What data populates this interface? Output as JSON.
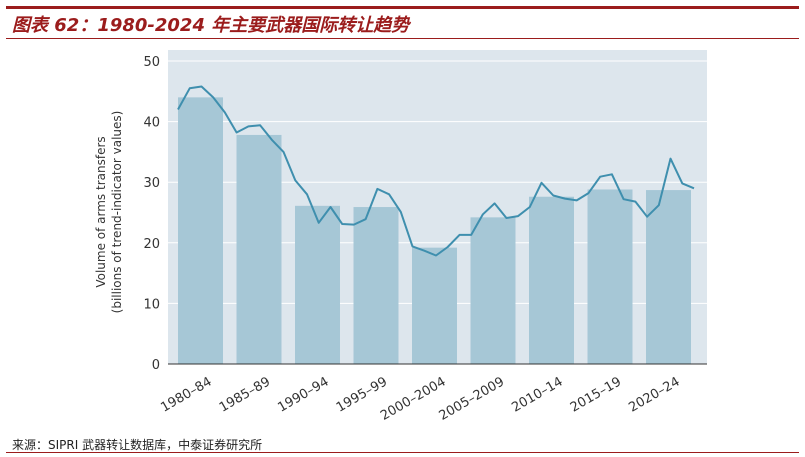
{
  "header": {
    "figure_title": "图表 62：1980-2024 年主要武器国际转让趋势"
  },
  "footer": {
    "source": "来源：SIPRI 武器转让数据库，中泰证券研究所"
  },
  "chart_data": {
    "type": "bar",
    "title": "",
    "ylabel_line1": "Volume of arms transfers",
    "ylabel_line2": "(billions of trend-indicator values)",
    "xlabel": "",
    "ylim": [
      0,
      50
    ],
    "yticks": [
      0,
      10,
      20,
      30,
      40,
      50
    ],
    "grid": true,
    "categories": [
      "1980–84",
      "1985–89",
      "1990–94",
      "1995–99",
      "2000–2004",
      "2005–2009",
      "2010–14",
      "2015–19",
      "2020–24"
    ],
    "bar_values": [
      44.0,
      37.8,
      26.1,
      25.9,
      19.2,
      24.2,
      27.6,
      28.8,
      28.7
    ],
    "annual_series": {
      "x": [
        1980,
        1981,
        1982,
        1983,
        1984,
        1985,
        1986,
        1987,
        1988,
        1989,
        1990,
        1991,
        1992,
        1993,
        1994,
        1995,
        1996,
        1997,
        1998,
        1999,
        2000,
        2001,
        2002,
        2003,
        2004,
        2005,
        2006,
        2007,
        2008,
        2009,
        2010,
        2011,
        2012,
        2013,
        2014,
        2015,
        2016,
        2017,
        2018,
        2019,
        2020,
        2021,
        2022,
        2023,
        2024
      ],
      "values": [
        42.0,
        45.5,
        45.8,
        44.0,
        41.5,
        38.2,
        39.2,
        39.4,
        37.0,
        35.0,
        30.3,
        28.0,
        23.3,
        25.9,
        23.1,
        23.0,
        23.9,
        28.9,
        28.0,
        25.1,
        19.4,
        18.7,
        17.9,
        19.3,
        21.3,
        21.3,
        24.7,
        26.5,
        24.1,
        24.4,
        25.9,
        29.9,
        27.8,
        27.3,
        27.0,
        28.2,
        30.9,
        31.3,
        27.2,
        26.8,
        24.3,
        26.2,
        33.9,
        29.8,
        29.0
      ]
    },
    "colors": {
      "plot_background": "#dde6ed",
      "bar": "#a6c7d6",
      "line": "#3f8fae",
      "grid": "#ffffff",
      "axis": "#333333"
    }
  }
}
